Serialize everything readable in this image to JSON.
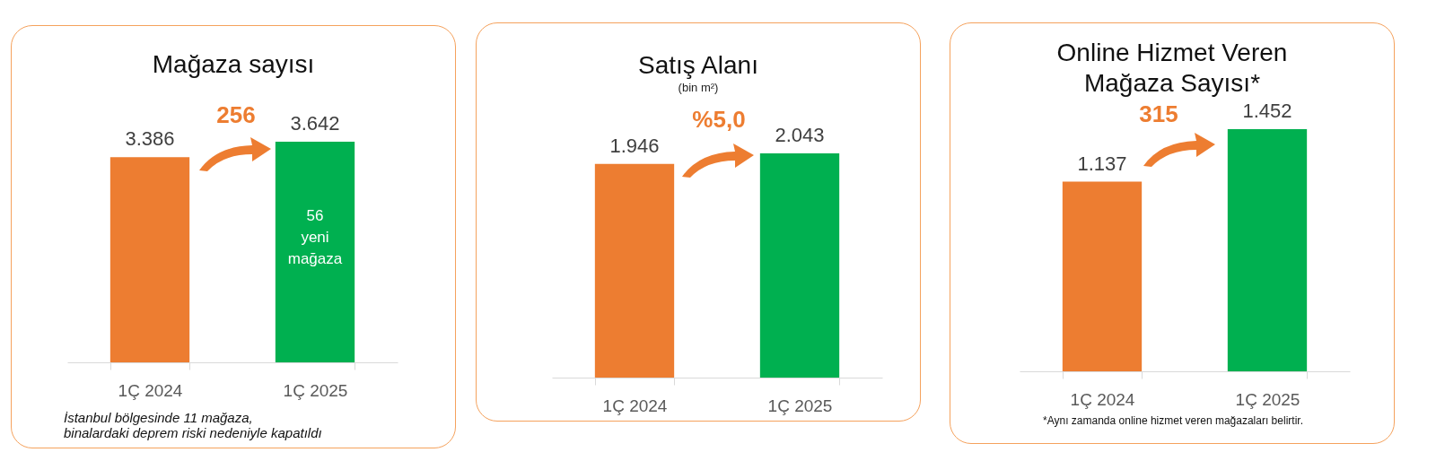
{
  "chart_data": [
    {
      "type": "bar",
      "title": "Mağaza sayısı",
      "categories": [
        "1Ç 2024",
        "1Ç 2025"
      ],
      "values": [
        3386,
        3642
      ],
      "value_labels": [
        "3.386",
        "3.642"
      ],
      "colors": [
        "#ed7d31",
        "#00b050"
      ],
      "annotations": [
        "256",
        "56 yeni mağaza",
        "İstanbul bölgesinde 11 mağaza,\nbinalardaki deprem riski nedeniyle kapatıldı"
      ]
    },
    {
      "type": "bar",
      "title": "Satış Alanı",
      "subtitle": "(bin m²)",
      "categories": [
        "1Ç 2024",
        "1Ç 2025"
      ],
      "values": [
        1946,
        2043
      ],
      "value_labels": [
        "1.946",
        "2.043"
      ],
      "colors": [
        "#ed7d31",
        "#00b050"
      ],
      "annotations": [
        "%5,0"
      ]
    },
    {
      "type": "bar",
      "title": "Online Hizmet Veren\nMağaza Sayısı*",
      "categories": [
        "1Ç 2024",
        "1Ç 2025"
      ],
      "values": [
        1137,
        1452
      ],
      "value_labels": [
        "1.137",
        "1.452"
      ],
      "colors": [
        "#ed7d31",
        "#00b050"
      ],
      "annotations": [
        "315",
        "*Aynı zamanda online hizmet veren mağazaları belirtir."
      ]
    }
  ]
}
